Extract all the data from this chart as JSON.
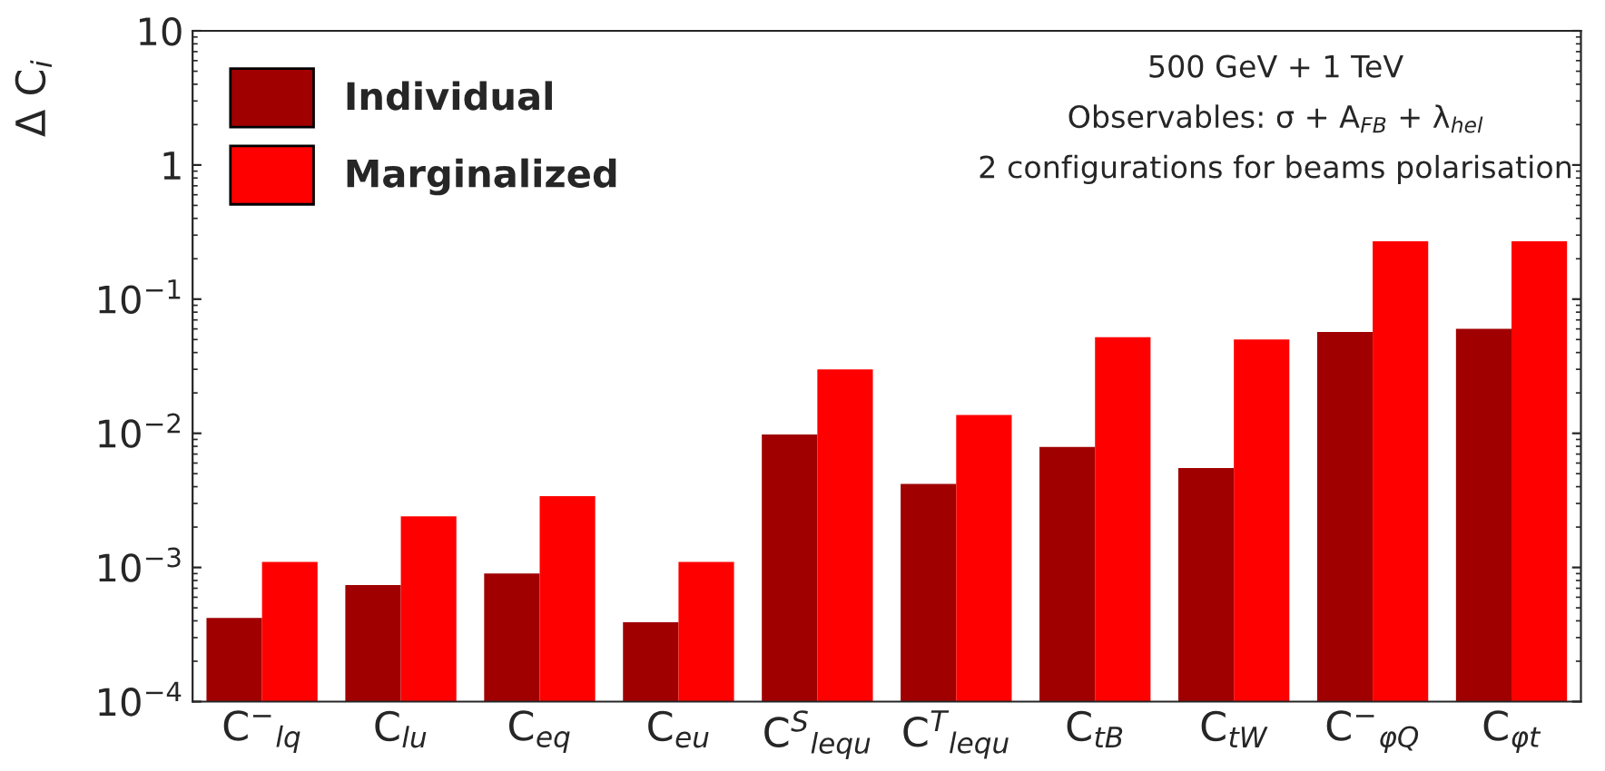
{
  "chart_data": {
    "type": "bar",
    "ylabel": "Δ C$_{i}$",
    "categories": [
      "C$^{−}$$_{lq}$",
      "C$_{lu}$",
      "C$_{eq}$",
      "C$_{eu}$",
      "C$^{S}$$_{lequ}$",
      "C$^{T}$$_{lequ}$",
      "C$_{tB}$",
      "C$_{tW}$",
      "C$^{−}$$_{φQ}$",
      "C$_{φt}$"
    ],
    "series": [
      {
        "name": "Individual",
        "color": "#a00000",
        "values": [
          0.00042,
          0.00074,
          0.0009,
          0.00039,
          0.0098,
          0.0042,
          0.0079,
          0.0055,
          0.057,
          0.06
        ]
      },
      {
        "name": "Marginalized",
        "color": "#ff0000",
        "values": [
          0.0011,
          0.0024,
          0.0034,
          0.0011,
          0.03,
          0.0137,
          0.052,
          0.05,
          0.27,
          0.27
        ]
      }
    ],
    "log": true,
    "ylim": [
      0.0001,
      10
    ],
    "yticks": [
      {
        "value": 0.0001,
        "label": "10$^{−4}$"
      },
      {
        "value": 0.001,
        "label": "10$^{−3}$"
      },
      {
        "value": 0.01,
        "label": "10$^{−2}$"
      },
      {
        "value": 0.1,
        "label": "10$^{−1}$"
      },
      1,
      10
    ],
    "annotations": [
      "500 GeV + 1 TeV",
      "Observables: σ + A$_{FB}$ + λ$_{hel}$",
      "2 configurations for beams polarisation"
    ],
    "legend": "top left",
    "grid": false
  }
}
